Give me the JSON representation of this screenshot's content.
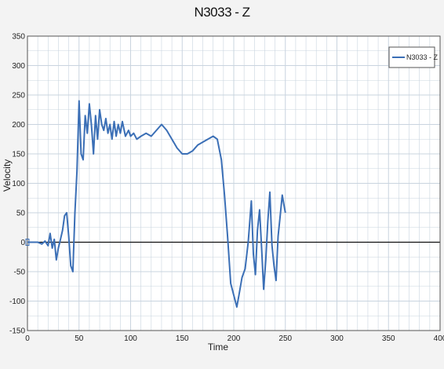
{
  "chart_data": {
    "type": "line",
    "title": "N3033 - Z",
    "xlabel": "Time",
    "ylabel": "Velocity",
    "xlim": [
      0,
      400
    ],
    "ylim": [
      -150,
      350
    ],
    "xticks": [
      0,
      50,
      100,
      150,
      200,
      250,
      300,
      350,
      400
    ],
    "yticks": [
      -150,
      -100,
      -50,
      0,
      50,
      100,
      150,
      200,
      250,
      300,
      350
    ],
    "grid": true,
    "legend_position": "top-right",
    "colors": {
      "series": "#3b6fb6",
      "zero_line": "#111111",
      "grid": "#c9d4df",
      "plot_bg": "#ffffff"
    },
    "series": [
      {
        "name": "N3033 - Z",
        "x": [
          0,
          10,
          14,
          17,
          20,
          22,
          24,
          26,
          28,
          30,
          32,
          34,
          36,
          38,
          40,
          42,
          44,
          46,
          48,
          50,
          52,
          54,
          56,
          58,
          60,
          62,
          64,
          66,
          68,
          70,
          72,
          74,
          76,
          78,
          80,
          82,
          84,
          86,
          88,
          90,
          92,
          95,
          98,
          100,
          103,
          106,
          110,
          115,
          120,
          125,
          130,
          135,
          140,
          145,
          150,
          155,
          160,
          165,
          170,
          175,
          180,
          184,
          188,
          191,
          194,
          197,
          200,
          203,
          205,
          208,
          211,
          214,
          217,
          219,
          221,
          223,
          225,
          227,
          229,
          231,
          233,
          235,
          237,
          239,
          241,
          243,
          245,
          247,
          249,
          250
        ],
        "values": [
          0,
          0,
          -3,
          2,
          -6,
          15,
          -10,
          5,
          -30,
          -10,
          5,
          20,
          45,
          50,
          10,
          -40,
          -50,
          50,
          120,
          240,
          150,
          140,
          215,
          185,
          235,
          200,
          150,
          215,
          175,
          225,
          200,
          190,
          210,
          185,
          200,
          175,
          205,
          180,
          200,
          185,
          205,
          180,
          190,
          180,
          185,
          175,
          180,
          185,
          180,
          190,
          200,
          190,
          175,
          160,
          150,
          150,
          155,
          165,
          170,
          175,
          180,
          175,
          140,
          80,
          10,
          -70,
          -90,
          -110,
          -90,
          -60,
          -45,
          0,
          70,
          -20,
          -55,
          20,
          55,
          -10,
          -80,
          -30,
          35,
          85,
          -5,
          -40,
          -65,
          10,
          45,
          80,
          60,
          50
        ]
      }
    ]
  }
}
